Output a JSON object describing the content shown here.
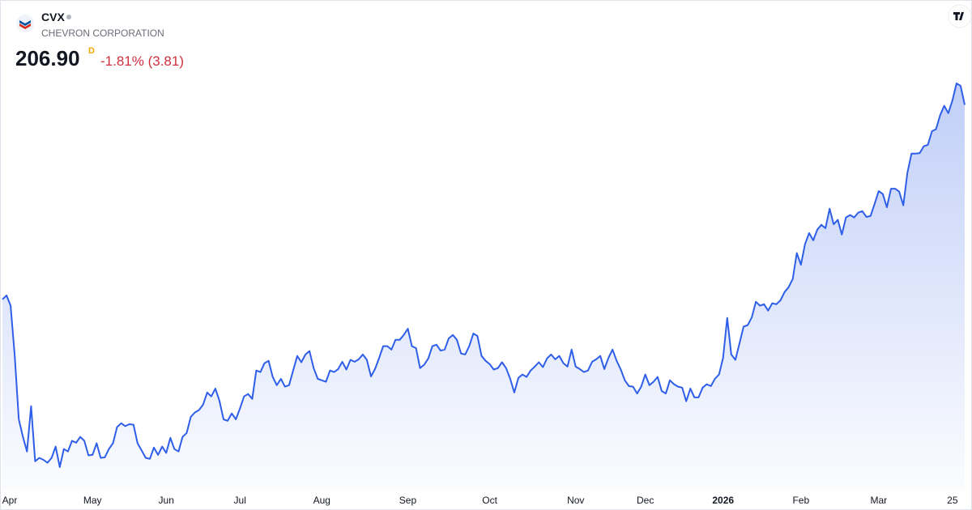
{
  "chart_data": {
    "type": "area-line",
    "symbol": "CVX",
    "company": "CHEVRON CORPORATION",
    "price": "206.90",
    "interval": "D",
    "change": "-1.81% (3.81)",
    "xlim": [
      0,
      235
    ],
    "xticks": [
      {
        "value": 1,
        "label": "Apr"
      },
      {
        "value": 22,
        "label": "May"
      },
      {
        "value": 40,
        "label": "Jun"
      },
      {
        "value": 58,
        "label": "Jul"
      },
      {
        "value": 78,
        "label": "Aug"
      },
      {
        "value": 99,
        "label": "Sep"
      },
      {
        "value": 119,
        "label": "Oct"
      },
      {
        "value": 140,
        "label": "Nov"
      },
      {
        "value": 157,
        "label": "Dec"
      },
      {
        "value": 176,
        "label": "2026",
        "bold": true
      },
      {
        "value": 195,
        "label": "Feb"
      },
      {
        "value": 214,
        "label": "Mar"
      },
      {
        "value": 232,
        "label": "25"
      }
    ],
    "series": [
      {
        "color": "#2f5ee8",
        "values": [
          167.0,
          167.8,
          165.7,
          155.4,
          142.4,
          138.8,
          135.8,
          145.1,
          133.8,
          134.5,
          134.1,
          133.5,
          134.5,
          136.8,
          132.6,
          136.3,
          135.8,
          138.0,
          137.6,
          138.8,
          138.0,
          135.0,
          135.1,
          137.5,
          134.5,
          134.6,
          136.3,
          137.5,
          140.8,
          141.6,
          141.0,
          141.4,
          141.3,
          137.5,
          136.0,
          134.5,
          134.3,
          136.6,
          135.1,
          136.8,
          135.5,
          138.6,
          136.3,
          135.8,
          138.8,
          139.6,
          142.9,
          143.8,
          144.3,
          145.4,
          147.9,
          147.1,
          148.7,
          146.2,
          142.4,
          142.1,
          143.6,
          142.4,
          144.6,
          147.1,
          147.6,
          146.6,
          152.4,
          152.1,
          153.9,
          154.4,
          151.1,
          149.4,
          150.7,
          149.1,
          149.4,
          152.4,
          155.4,
          154.1,
          155.7,
          156.4,
          152.9,
          150.7,
          150.4,
          150.1,
          152.4,
          152.1,
          152.7,
          154.2,
          152.6,
          154.6,
          154.2,
          154.7,
          155.7,
          154.6,
          151.2,
          152.7,
          155.0,
          157.4,
          157.4,
          156.7,
          158.7,
          158.7,
          159.7,
          161.0,
          157.4,
          157.0,
          152.9,
          153.6,
          154.9,
          157.4,
          157.7,
          156.5,
          156.7,
          159.0,
          159.7,
          158.7,
          155.9,
          155.7,
          157.4,
          160.0,
          159.5,
          155.4,
          154.4,
          153.7,
          152.6,
          152.9,
          154.1,
          152.9,
          150.7,
          147.9,
          150.9,
          151.6,
          151.1,
          152.4,
          153.2,
          154.1,
          153.1,
          154.9,
          155.7,
          154.7,
          155.4,
          153.9,
          153.2,
          156.7,
          153.2,
          152.7,
          152.1,
          152.4,
          154.2,
          154.7,
          155.4,
          152.7,
          155.0,
          156.7,
          154.4,
          152.6,
          150.4,
          149.2,
          149.1,
          147.7,
          149.1,
          151.6,
          149.4,
          150.1,
          151.1,
          148.2,
          147.7,
          150.4,
          149.6,
          149.1,
          148.9,
          146.1,
          148.7,
          146.9,
          146.9,
          148.9,
          149.6,
          149.2,
          150.7,
          151.6,
          155.0,
          163.2,
          155.7,
          154.6,
          158.0,
          161.4,
          161.7,
          163.3,
          166.5,
          165.7,
          166.0,
          164.7,
          166.2,
          166.0,
          166.8,
          168.5,
          169.5,
          171.2,
          176.5,
          174.1,
          178.3,
          180.6,
          179.1,
          181.3,
          182.3,
          181.6,
          185.6,
          182.4,
          183.3,
          180.3,
          183.8,
          184.3,
          183.8,
          184.8,
          185.1,
          183.9,
          184.1,
          186.6,
          189.2,
          188.6,
          185.9,
          189.7,
          189.7,
          189.1,
          186.3,
          192.9,
          196.9,
          196.9,
          197.0,
          198.4,
          198.7,
          201.5,
          201.9,
          204.8,
          206.7,
          205.2,
          207.8,
          211.3,
          210.8,
          206.9
        ]
      }
    ]
  }
}
